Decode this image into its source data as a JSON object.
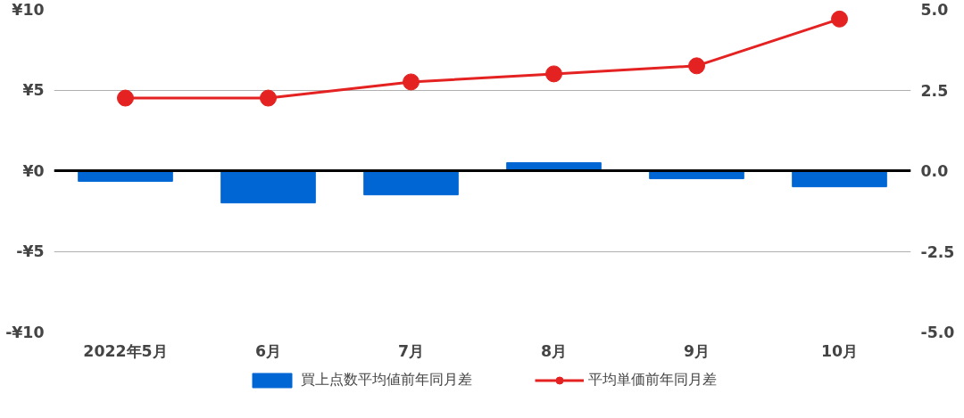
{
  "chart_data": {
    "type": "bar",
    "categories": [
      "2022年5月",
      "6月",
      "7月",
      "8月",
      "9月",
      "10月"
    ],
    "series": [
      {
        "name": "買上点数平均値前年同月差",
        "axis": "y2",
        "color": "#0066d4",
        "values": [
          -0.33,
          -1.0,
          -0.75,
          0.25,
          -0.25,
          -0.5
        ]
      },
      {
        "name": "平均単価前年同月差",
        "type": "line",
        "color": "#e52222",
        "marker": "circle",
        "values": [
          4.5,
          4.5,
          5.5,
          6.0,
          6.5,
          9.4
        ]
      }
    ],
    "ylim": [
      -10,
      10
    ],
    "yticks": [
      {
        "value": -10,
        "label": "-¥10"
      },
      {
        "value": -5,
        "label": "-¥5"
      },
      {
        "value": 0,
        "label": "¥0"
      },
      {
        "value": 5,
        "label": "¥5"
      },
      {
        "value": 10,
        "label": "¥10"
      }
    ],
    "y2lim": [
      -5,
      5
    ],
    "y2ticks": [
      {
        "value": -5,
        "label": "-5.0"
      },
      {
        "value": -2.5,
        "label": "-2.5"
      },
      {
        "value": 0,
        "label": "0.0"
      },
      {
        "value": 2.5,
        "label": "2.5"
      },
      {
        "value": 5,
        "label": "5.0"
      }
    ],
    "ref_lines": [
      {
        "axis": "y",
        "value": 0,
        "color": "#000000"
      }
    ],
    "grid": "y",
    "legend": "bottom"
  }
}
